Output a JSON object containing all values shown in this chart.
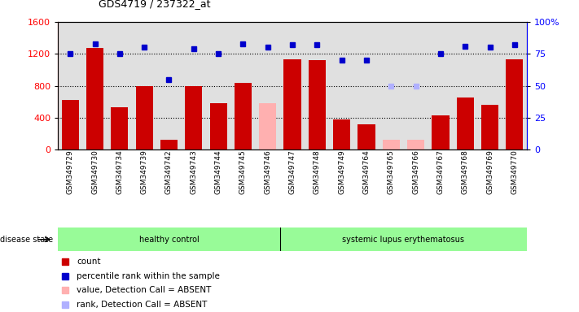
{
  "title": "GDS4719 / 237322_at",
  "samples": [
    "GSM349729",
    "GSM349730",
    "GSM349734",
    "GSM349739",
    "GSM349742",
    "GSM349743",
    "GSM349744",
    "GSM349745",
    "GSM349746",
    "GSM349747",
    "GSM349748",
    "GSM349749",
    "GSM349764",
    "GSM349765",
    "GSM349766",
    "GSM349767",
    "GSM349768",
    "GSM349769",
    "GSM349770"
  ],
  "counts": [
    620,
    1270,
    530,
    800,
    130,
    800,
    580,
    840,
    580,
    1130,
    1120,
    380,
    320,
    130,
    130,
    430,
    650,
    560,
    1130
  ],
  "absent_count": [
    false,
    false,
    false,
    false,
    false,
    false,
    false,
    false,
    true,
    false,
    false,
    false,
    false,
    true,
    true,
    false,
    false,
    false,
    false
  ],
  "percentile_ranks": [
    75,
    83,
    75,
    80,
    55,
    79,
    75,
    83,
    80,
    82,
    82,
    70,
    70,
    50,
    50,
    75,
    81,
    80,
    82
  ],
  "absent_rank": [
    false,
    false,
    false,
    false,
    false,
    false,
    false,
    false,
    false,
    false,
    false,
    false,
    false,
    true,
    true,
    false,
    false,
    false,
    false
  ],
  "healthy_count": 9,
  "group_labels": [
    "healthy control",
    "systemic lupus erythematosus"
  ],
  "bar_color_normal": "#cc0000",
  "bar_color_absent": "#ffb0b0",
  "dot_color_normal": "#0000cc",
  "dot_color_absent": "#b0b0ff",
  "ylim_left": [
    0,
    1600
  ],
  "ylim_right": [
    0,
    100
  ],
  "yticks_left": [
    0,
    400,
    800,
    1200,
    1600
  ],
  "yticks_right": [
    0,
    25,
    50,
    75,
    100
  ],
  "disease_state_label": "disease state",
  "healthy_bg": "#98fb98",
  "lupus_bg": "#98fb98",
  "col_bg": "#e0e0e0",
  "legend_items": [
    {
      "label": "count",
      "color": "#cc0000"
    },
    {
      "label": "percentile rank within the sample",
      "color": "#0000cc"
    },
    {
      "label": "value, Detection Call = ABSENT",
      "color": "#ffb0b0"
    },
    {
      "label": "rank, Detection Call = ABSENT",
      "color": "#b0b0ff"
    }
  ]
}
